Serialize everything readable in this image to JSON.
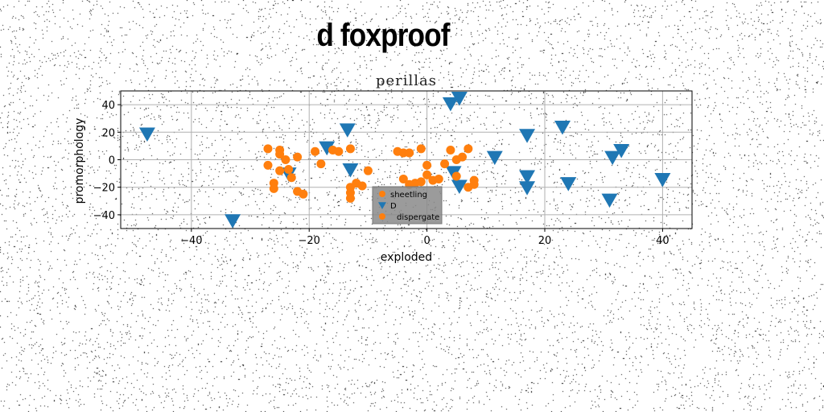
{
  "figure": {
    "suptitle": "d foxproof"
  },
  "chart_data": {
    "type": "scatter",
    "title": "perillas",
    "xlabel": "exploded",
    "ylabel": "promorphology",
    "xlim": [
      -52,
      45
    ],
    "ylim": [
      -50,
      50
    ],
    "xticks": [
      -40,
      -20,
      0,
      20,
      40
    ],
    "yticks": [
      -40,
      -20,
      0,
      20,
      40
    ],
    "xtick_labels": [
      "−40",
      "−20",
      "0",
      "20",
      "40"
    ],
    "ytick_labels": [
      "−40",
      "−20",
      "0",
      "20",
      "40"
    ],
    "grid": true,
    "legend": {
      "placement": "lower-center",
      "entries": [
        "sheetling",
        "D",
        "dispergate"
      ]
    },
    "series": [
      {
        "name": "sheetling",
        "marker": "circle",
        "color": "#ff7f0e",
        "points": []
      },
      {
        "name": "D",
        "marker": "triangle-down",
        "color": "#1f77b4",
        "points": [
          [
            -47.5,
            19
          ],
          [
            -33,
            -44
          ],
          [
            -23.5,
            -10
          ],
          [
            -17,
            9
          ],
          [
            -13.5,
            22
          ],
          [
            -13,
            -7
          ],
          [
            4,
            41
          ],
          [
            5.5,
            45
          ],
          [
            4.5,
            -9
          ],
          [
            5.5,
            -19
          ],
          [
            11.5,
            2
          ],
          [
            17,
            18
          ],
          [
            17,
            -12
          ],
          [
            17,
            -20
          ],
          [
            23,
            24
          ],
          [
            24,
            -17
          ],
          [
            31,
            -29
          ],
          [
            31.5,
            2
          ],
          [
            33,
            7
          ],
          [
            40,
            -14
          ]
        ]
      },
      {
        "name": "dispergate",
        "marker": "circle",
        "color": "#ff7f0e",
        "points": [
          [
            -27,
            8
          ],
          [
            -27,
            -4
          ],
          [
            -26,
            -17
          ],
          [
            -26,
            -21
          ],
          [
            -25,
            7
          ],
          [
            -25,
            4
          ],
          [
            -25,
            -8
          ],
          [
            -24,
            0
          ],
          [
            -23.5,
            -7
          ],
          [
            -23,
            -13
          ],
          [
            -22,
            2
          ],
          [
            -22,
            -23
          ],
          [
            -21,
            -25
          ],
          [
            -19,
            6
          ],
          [
            -18,
            -3
          ],
          [
            -16,
            7
          ],
          [
            -15,
            6
          ],
          [
            -13,
            8
          ],
          [
            -13,
            -20
          ],
          [
            -13,
            -24
          ],
          [
            -13,
            -28
          ],
          [
            -12,
            -17
          ],
          [
            -11,
            -19
          ],
          [
            -10,
            -8
          ],
          [
            -5,
            6
          ],
          [
            -4,
            5
          ],
          [
            -4,
            -14
          ],
          [
            -3,
            5
          ],
          [
            -3,
            -18
          ],
          [
            -2,
            -17
          ],
          [
            -1,
            -16
          ],
          [
            -1,
            8
          ],
          [
            0,
            -4
          ],
          [
            0,
            -11
          ],
          [
            1,
            -15
          ],
          [
            2,
            -14
          ],
          [
            3,
            -3
          ],
          [
            4,
            7
          ],
          [
            5,
            0
          ],
          [
            5,
            -12
          ],
          [
            6,
            2
          ],
          [
            7,
            -20
          ],
          [
            7,
            8
          ],
          [
            8,
            -15
          ],
          [
            8,
            -18
          ]
        ]
      }
    ]
  }
}
